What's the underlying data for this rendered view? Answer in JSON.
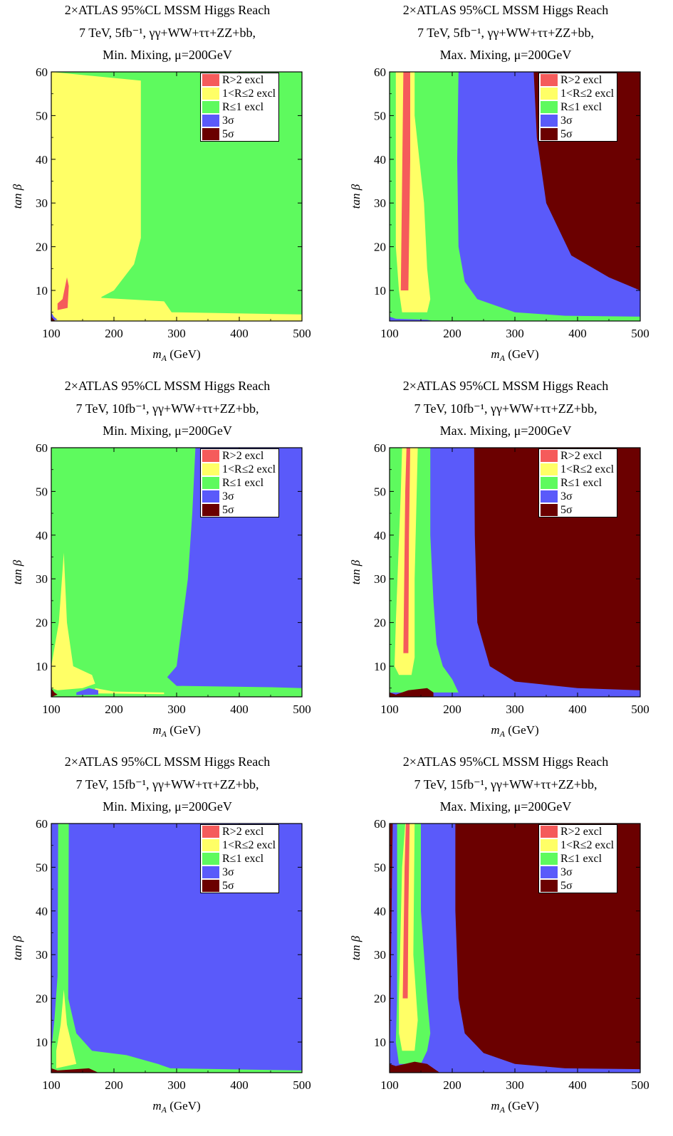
{
  "colors": {
    "r_gt_2": "#f55b5b",
    "r_1_2": "#ffff66",
    "r_le_1": "#5efa5e",
    "sigma3": "#5a5afa",
    "sigma5": "#6b0000"
  },
  "panels": [
    {
      "title1": "2×ATLAS 95%CL MSSM Higgs Reach",
      "title2": "7 TeV, 5fb⁻¹, γγ+WW+ττ+ZZ+bb,",
      "title3": "Min. Mixing, μ=200GeV",
      "background": "r_le_1",
      "regions": [
        {
          "cls": "r_1_2",
          "pts": [
            [
              100,
              60
            ],
            [
              243,
              58
            ],
            [
              243,
              22
            ],
            [
              232,
              16
            ],
            [
              200,
              10
            ],
            [
              180,
              8.5
            ],
            [
              180,
              8.3
            ],
            [
              280,
              7.5
            ],
            [
              292,
              5
            ],
            [
              500,
              4.5
            ],
            [
              500,
              3
            ],
            [
              100,
              3
            ]
          ]
        },
        {
          "cls": "r_gt_2",
          "pts": [
            [
              110,
              7
            ],
            [
              118,
              8
            ],
            [
              125,
              13
            ],
            [
              128,
              11
            ],
            [
              126,
              6
            ],
            [
              110,
              5.5
            ]
          ]
        },
        {
          "cls": "sigma3",
          "pts": [
            [
              100,
              5
            ],
            [
              104,
              4
            ],
            [
              110,
              3.3
            ],
            [
              100,
              3
            ]
          ]
        },
        {
          "cls": "sigma5",
          "pts": [
            [
              100,
              4
            ],
            [
              106,
              3
            ],
            [
              100,
              3
            ]
          ]
        }
      ]
    },
    {
      "title1": "2×ATLAS 95%CL MSSM Higgs Reach",
      "title2": "7 TeV, 5fb⁻¹, γγ+WW+ττ+ZZ+bb,",
      "title3": "Max. Mixing, μ=200GeV",
      "background": "sigma3",
      "regions": [
        {
          "cls": "r_le_1",
          "pts": [
            [
              100,
              60
            ],
            [
              210,
              60
            ],
            [
              208,
              40
            ],
            [
              210,
              20
            ],
            [
              220,
              12
            ],
            [
              240,
              8
            ],
            [
              300,
              5
            ],
            [
              380,
              4.2
            ],
            [
              500,
              4
            ],
            [
              500,
              3
            ],
            [
              100,
              3
            ]
          ]
        },
        {
          "cls": "r_1_2",
          "pts": [
            [
              110,
              60
            ],
            [
              140,
              60
            ],
            [
              140,
              50
            ],
            [
              155,
              30
            ],
            [
              160,
              15
            ],
            [
              165,
              8
            ],
            [
              160,
              5
            ],
            [
              120,
              5
            ],
            [
              115,
              10
            ],
            [
              110,
              20
            ]
          ]
        },
        {
          "cls": "r_gt_2",
          "pts": [
            [
              118,
              10
            ],
            [
              122,
              60
            ],
            [
              133,
              60
            ],
            [
              133,
              40
            ],
            [
              130,
              10
            ]
          ]
        },
        {
          "cls": "sigma5",
          "pts": [
            [
              500,
              10
            ],
            [
              450,
              13
            ],
            [
              390,
              18
            ],
            [
              350,
              30
            ],
            [
              335,
              45
            ],
            [
              330,
              60
            ],
            [
              500,
              60
            ]
          ]
        },
        {
          "cls": "sigma3",
          "pts": [
            [
              100,
              4
            ],
            [
              110,
              3.5
            ],
            [
              160,
              3.3
            ],
            [
              170,
              3
            ],
            [
              100,
              3
            ]
          ]
        }
      ]
    },
    {
      "title1": "2×ATLAS 95%CL MSSM Higgs Reach",
      "title2": "7 TeV, 10fb⁻¹, γγ+WW+ττ+ZZ+bb,",
      "title3": "Min. Mixing, μ=200GeV",
      "background": "r_le_1",
      "regions": [
        {
          "cls": "sigma3",
          "pts": [
            [
              330,
              60
            ],
            [
              500,
              60
            ],
            [
              500,
              5
            ],
            [
              450,
              5.2
            ],
            [
              300,
              5.5
            ],
            [
              285,
              7.5
            ],
            [
              300,
              10
            ],
            [
              318,
              30
            ],
            [
              325,
              45
            ]
          ]
        },
        {
          "cls": "r_1_2",
          "pts": [
            [
              100,
              10
            ],
            [
              112,
              20
            ],
            [
              120,
              36
            ],
            [
              125,
              20
            ],
            [
              135,
              10
            ],
            [
              165,
              8
            ],
            [
              170,
              6
            ],
            [
              150,
              5
            ],
            [
              110,
              4.5
            ],
            [
              100,
              5
            ]
          ]
        },
        {
          "cls": "r_1_2",
          "pts": [
            [
              170,
              5
            ],
            [
              200,
              4.2
            ],
            [
              280,
              4
            ],
            [
              280,
              3.6
            ],
            [
              170,
              3.8
            ]
          ]
        },
        {
          "cls": "sigma3",
          "pts": [
            [
              140,
              4
            ],
            [
              160,
              5
            ],
            [
              175,
              4.5
            ],
            [
              175,
              3.5
            ],
            [
              140,
              3.4
            ]
          ]
        },
        {
          "cls": "sigma5",
          "pts": [
            [
              100,
              5
            ],
            [
              105,
              4
            ],
            [
              110,
              3.5
            ],
            [
              100,
              3
            ]
          ]
        }
      ]
    },
    {
      "title1": "2×ATLAS 95%CL MSSM Higgs Reach",
      "title2": "7 TeV, 10fb⁻¹, γγ+WW+ττ+ZZ+bb,",
      "title3": "Max. Mixing, μ=200GeV",
      "background": "sigma5",
      "regions": [
        {
          "cls": "sigma3",
          "pts": [
            [
              100,
              60
            ],
            [
              235,
              60
            ],
            [
              236,
              40
            ],
            [
              240,
              20
            ],
            [
              260,
              10
            ],
            [
              300,
              6.5
            ],
            [
              400,
              5
            ],
            [
              500,
              4.5
            ],
            [
              500,
              3
            ],
            [
              100,
              3
            ]
          ]
        },
        {
          "cls": "r_le_1",
          "pts": [
            [
              100,
              60
            ],
            [
              165,
              60
            ],
            [
              165,
              40
            ],
            [
              170,
              25
            ],
            [
              175,
              15
            ],
            [
              185,
              10
            ],
            [
              200,
              7
            ],
            [
              210,
              4
            ],
            [
              100,
              4
            ]
          ]
        },
        {
          "cls": "r_1_2",
          "pts": [
            [
              110,
              20
            ],
            [
              118,
              50
            ],
            [
              120,
              60
            ],
            [
              145,
              60
            ],
            [
              140,
              30
            ],
            [
              140,
              12
            ],
            [
              135,
              8
            ],
            [
              115,
              8
            ],
            [
              108,
              10
            ]
          ]
        },
        {
          "cls": "r_gt_2",
          "pts": [
            [
              122,
              13
            ],
            [
              125,
              50
            ],
            [
              127,
              60
            ],
            [
              133,
              60
            ],
            [
              131,
              40
            ],
            [
              130,
              13
            ]
          ]
        },
        {
          "cls": "sigma5",
          "pts": [
            [
              100,
              4
            ],
            [
              110,
              3.5
            ],
            [
              130,
              4.5
            ],
            [
              160,
              5
            ],
            [
              170,
              4
            ],
            [
              170,
              3
            ],
            [
              100,
              3
            ]
          ]
        }
      ]
    },
    {
      "title1": "2×ATLAS 95%CL MSSM Higgs Reach",
      "title2": "7 TeV, 15fb⁻¹, γγ+WW+ττ+ZZ+bb,",
      "title3": "Min. Mixing, μ=200GeV",
      "background": "sigma3",
      "regions": [
        {
          "cls": "r_le_1",
          "pts": [
            [
              111,
              60
            ],
            [
              128,
              60
            ],
            [
              127,
              20
            ],
            [
              140,
              12
            ],
            [
              165,
              8
            ],
            [
              220,
              7
            ],
            [
              270,
              5
            ],
            [
              290,
              4
            ],
            [
              500,
              3.5
            ],
            [
              500,
              3
            ],
            [
              100,
              3
            ],
            [
              100,
              8
            ],
            [
              105,
              15
            ],
            [
              110,
              25
            ]
          ]
        },
        {
          "cls": "r_1_2",
          "pts": [
            [
              108,
              8
            ],
            [
              115,
              14
            ],
            [
              120,
              22
            ],
            [
              125,
              14
            ],
            [
              135,
              8
            ],
            [
              140,
              5
            ],
            [
              108,
              4
            ]
          ]
        },
        {
          "cls": "sigma5",
          "pts": [
            [
              100,
              4
            ],
            [
              110,
              3.5
            ],
            [
              160,
              4
            ],
            [
              175,
              3
            ],
            [
              100,
              3
            ]
          ]
        }
      ]
    },
    {
      "title1": "2×ATLAS 95%CL MSSM Higgs Reach",
      "title2": "7 TeV, 15fb⁻¹, γγ+WW+ττ+ZZ+bb,",
      "title3": "Max. Mixing, μ=200GeV",
      "background": "sigma5",
      "regions": [
        {
          "cls": "sigma3",
          "pts": [
            [
              105,
              60
            ],
            [
              205,
              60
            ],
            [
              205,
              40
            ],
            [
              210,
              20
            ],
            [
              220,
              12
            ],
            [
              250,
              7.5
            ],
            [
              300,
              5
            ],
            [
              380,
              4
            ],
            [
              500,
              3.8
            ],
            [
              500,
              3
            ],
            [
              100,
              3
            ]
          ]
        },
        {
          "cls": "r_le_1",
          "pts": [
            [
              112,
              60
            ],
            [
              150,
              60
            ],
            [
              150,
              40
            ],
            [
              160,
              20
            ],
            [
              165,
              12
            ],
            [
              160,
              8
            ],
            [
              150,
              5
            ],
            [
              115,
              5
            ],
            [
              110,
              10
            ],
            [
              112,
              20
            ]
          ]
        },
        {
          "cls": "r_1_2",
          "pts": [
            [
              115,
              20
            ],
            [
              120,
              50
            ],
            [
              125,
              60
            ],
            [
              140,
              60
            ],
            [
              138,
              30
            ],
            [
              145,
              15
            ],
            [
              140,
              8
            ],
            [
              120,
              8
            ],
            [
              115,
              12
            ]
          ]
        },
        {
          "cls": "r_gt_2",
          "pts": [
            [
              121,
              20
            ],
            [
              124,
              50
            ],
            [
              126,
              60
            ],
            [
              132,
              60
            ],
            [
              130,
              40
            ],
            [
              129,
              20
            ]
          ]
        },
        {
          "cls": "sigma5",
          "pts": [
            [
              100,
              5
            ],
            [
              110,
              4.5
            ],
            [
              140,
              5.5
            ],
            [
              160,
              5
            ],
            [
              180,
              3
            ],
            [
              100,
              3
            ]
          ]
        }
      ]
    }
  ],
  "axes": {
    "xlabel": "m",
    "xlabel_sub": "A",
    "xlabel_unit": " (GeV)",
    "ylabel": "tan β",
    "xlim": [
      100,
      500
    ],
    "ylim": [
      3,
      60
    ],
    "xticks": [
      "100",
      "200",
      "300",
      "400",
      "500"
    ],
    "yticks": [
      "10",
      "20",
      "30",
      "40",
      "50",
      "60"
    ]
  },
  "legend": [
    {
      "cls": "r_gt_2",
      "label": "R>2 excl"
    },
    {
      "cls": "r_1_2",
      "label": "1<R≤2 excl"
    },
    {
      "cls": "r_le_1",
      "label": "R≤1 excl"
    },
    {
      "cls": "sigma3",
      "label": "3σ"
    },
    {
      "cls": "sigma5",
      "label": "5σ"
    }
  ],
  "chart_data": [
    {
      "type": "heatmap",
      "title": "2×ATLAS 95%CL MSSM Higgs Reach",
      "subtitle": "7 TeV, 5fb⁻¹, γγ+WW+ττ+ZZ+bb, Min. Mixing, μ=200GeV",
      "xlabel": "m_A (GeV)",
      "ylabel": "tan β",
      "xlim": [
        100,
        500
      ],
      "ylim": [
        3,
        60
      ]
    },
    {
      "type": "heatmap",
      "title": "2×ATLAS 95%CL MSSM Higgs Reach",
      "subtitle": "7 TeV, 5fb⁻¹, γγ+WW+ττ+ZZ+bb, Max. Mixing, μ=200GeV",
      "xlabel": "m_A (GeV)",
      "ylabel": "tan β",
      "xlim": [
        100,
        500
      ],
      "ylim": [
        3,
        60
      ]
    },
    {
      "type": "heatmap",
      "title": "2×ATLAS 95%CL MSSM Higgs Reach",
      "subtitle": "7 TeV, 10fb⁻¹, γγ+WW+ττ+ZZ+bb, Min. Mixing, μ=200GeV",
      "xlabel": "m_A (GeV)",
      "ylabel": "tan β",
      "xlim": [
        100,
        500
      ],
      "ylim": [
        3,
        60
      ]
    },
    {
      "type": "heatmap",
      "title": "2×ATLAS 95%CL MSSM Higgs Reach",
      "subtitle": "7 TeV, 10fb⁻¹, γγ+WW+ττ+ZZ+bb, Max. Mixing, μ=200GeV",
      "xlabel": "m_A (GeV)",
      "ylabel": "tan β",
      "xlim": [
        100,
        500
      ],
      "ylim": [
        3,
        60
      ]
    },
    {
      "type": "heatmap",
      "title": "2×ATLAS 95%CL MSSM Higgs Reach",
      "subtitle": "7 TeV, 15fb⁻¹, γγ+WW+ττ+ZZ+bb, Min. Mixing, μ=200GeV",
      "xlabel": "m_A (GeV)",
      "ylabel": "tan β",
      "xlim": [
        100,
        500
      ],
      "ylim": [
        3,
        60
      ]
    },
    {
      "type": "heatmap",
      "title": "2×ATLAS 95%CL MSSM Higgs Reach",
      "subtitle": "7 TeV, 15fb⁻¹, γγ+WW+ττ+ZZ+bb, Max. Mixing, μ=200GeV",
      "xlabel": "m_A (GeV)",
      "ylabel": "tan β",
      "xlim": [
        100,
        500
      ],
      "ylim": [
        3,
        60
      ]
    }
  ]
}
